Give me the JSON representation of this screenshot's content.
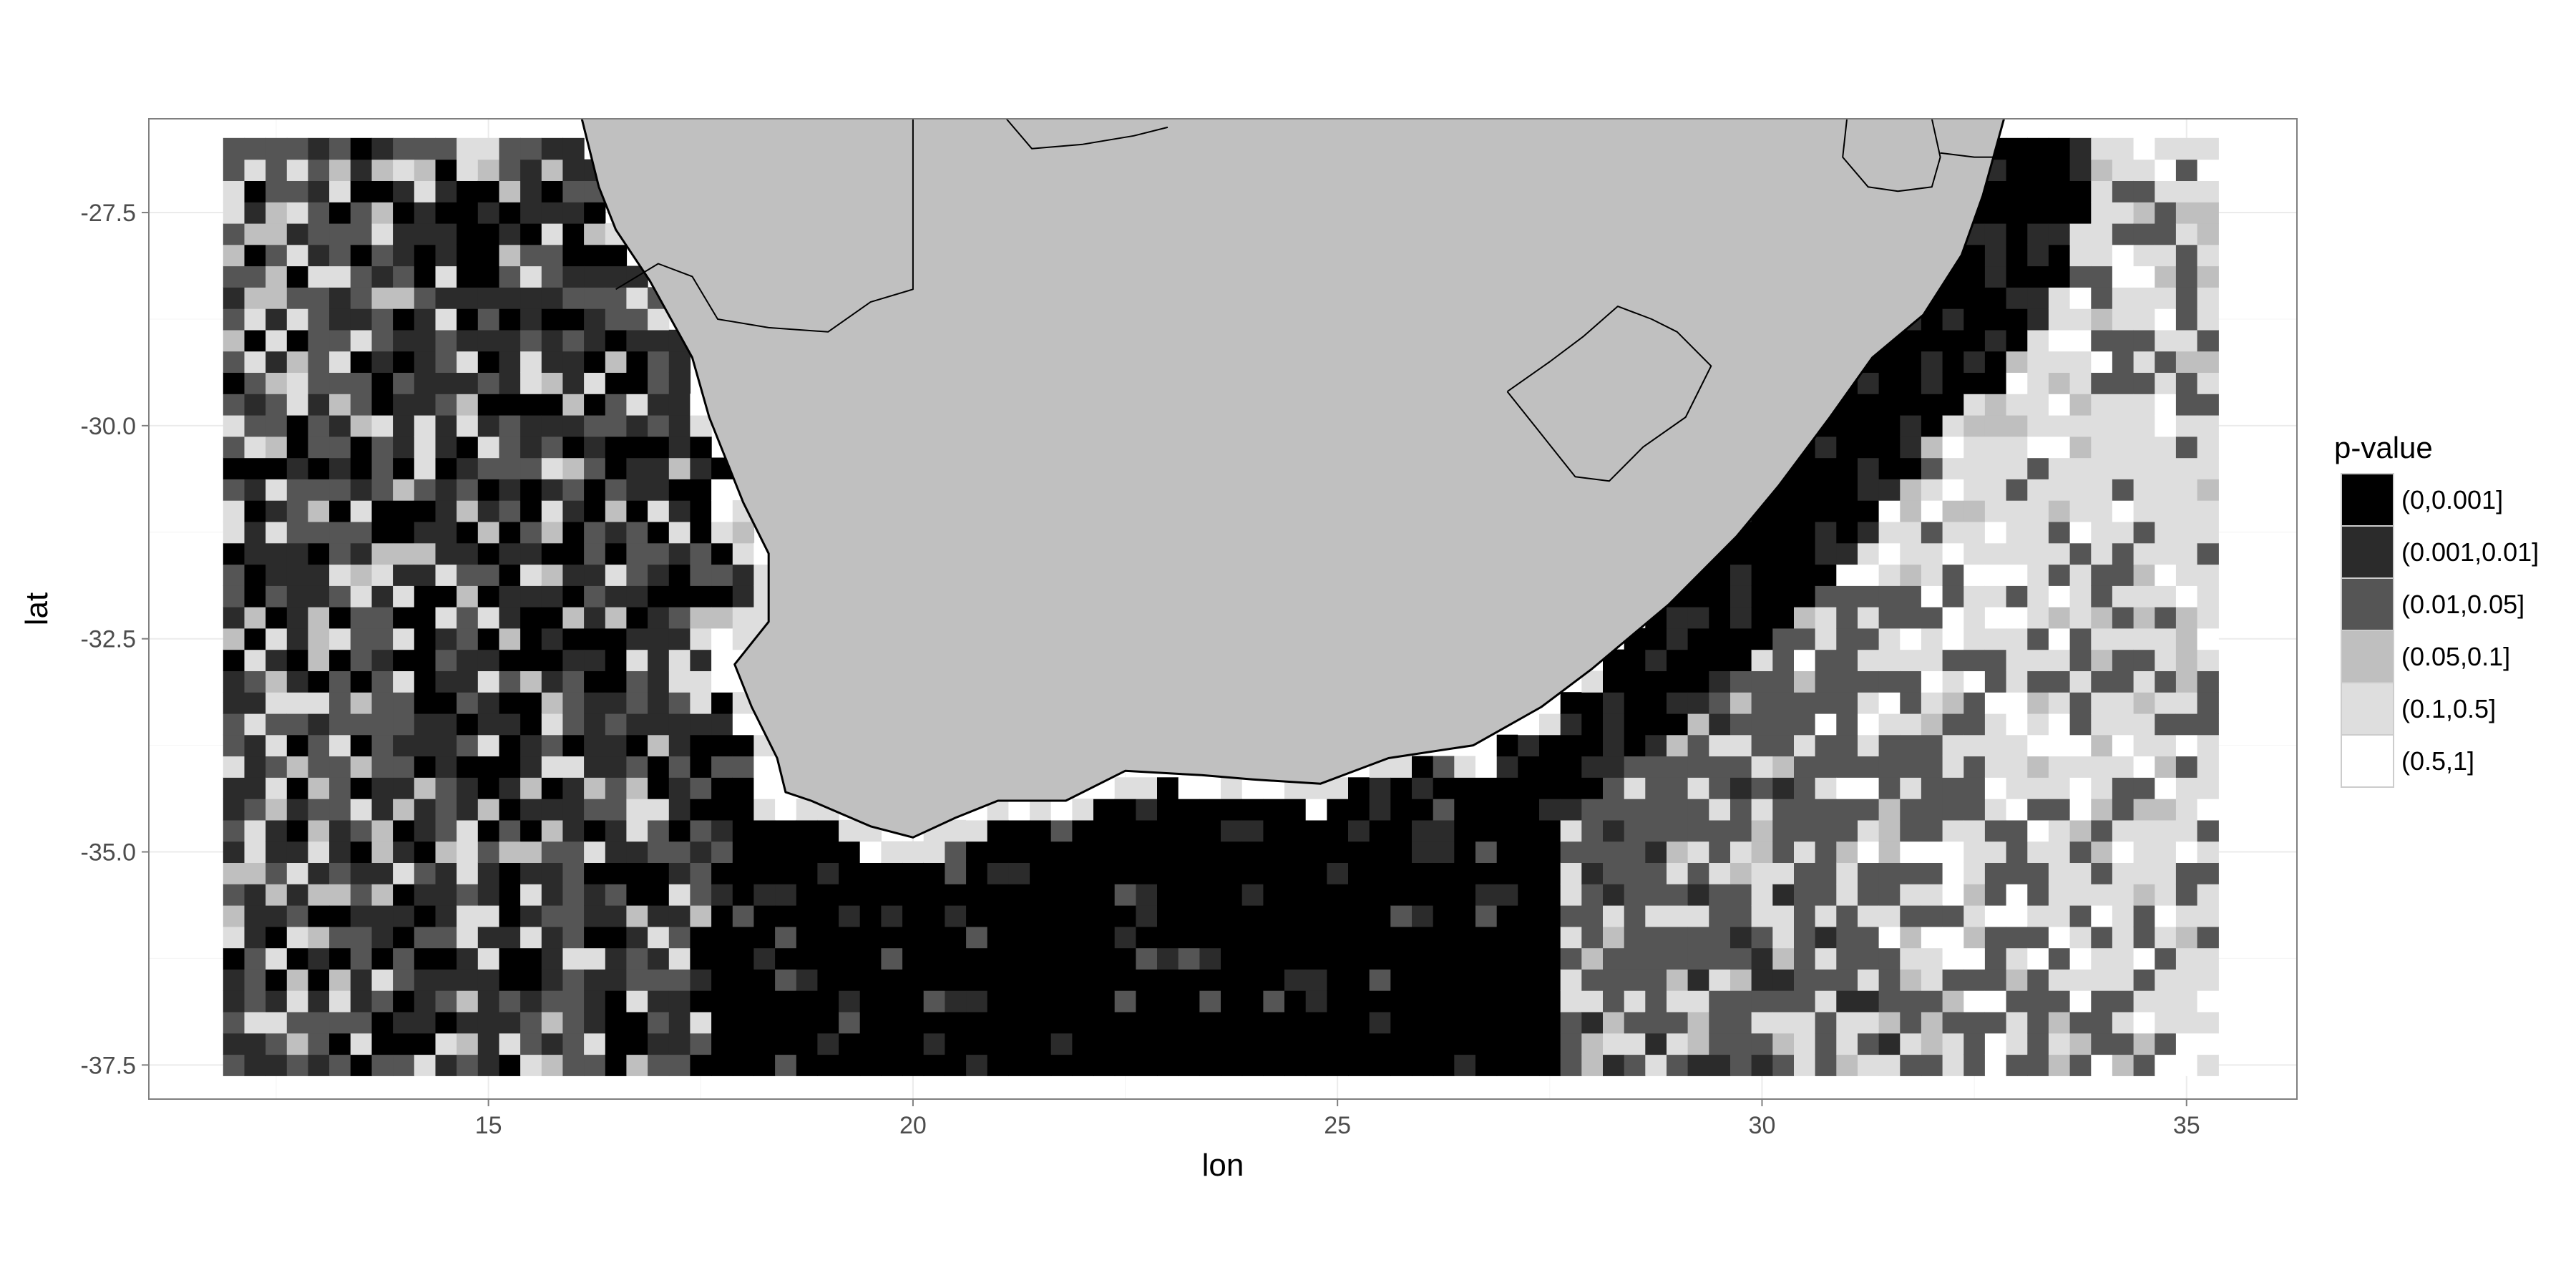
{
  "axes": {
    "x_title": "lon",
    "y_title": "lat",
    "x_ticks": [
      "15",
      "20",
      "25",
      "30",
      "35"
    ],
    "y_ticks": [
      "-27.5",
      "-30.0",
      "-32.5",
      "-35.0",
      "-37.5"
    ]
  },
  "legend": {
    "title": "p-value",
    "entries": [
      {
        "label": "(0,0.001]",
        "color": "#000000"
      },
      {
        "label": "(0.001,0.01]",
        "color": "#2b2b2b"
      },
      {
        "label": "(0.01,0.05]",
        "color": "#555555"
      },
      {
        "label": "(0.05,0.1]",
        "color": "#bfbfbf"
      },
      {
        "label": "(0.1,0.5]",
        "color": "#dedede"
      },
      {
        "label": "(0.5,1]",
        "color": "#ffffff"
      }
    ]
  },
  "map": {
    "land_color": "#c0c0c0",
    "border_color": "#000000",
    "grid_lon_range": [
      12,
      35.25
    ],
    "grid_lat_range": [
      -37.5,
      -26.75
    ],
    "cell_size_deg": 0.25,
    "xlim": [
      11,
      36.3
    ],
    "ylim": [
      -37.9,
      -26.4
    ],
    "features": [
      "southern-africa-coastline",
      "lesotho-border",
      "namibia-border",
      "botswana-border",
      "eswatini-border",
      "mozambique-border"
    ]
  }
}
